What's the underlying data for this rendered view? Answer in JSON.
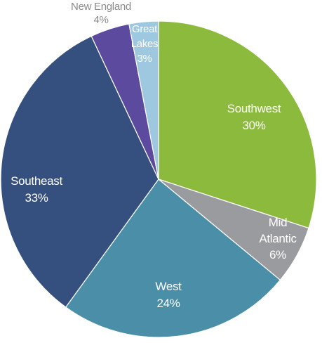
{
  "chart_data": {
    "type": "pie",
    "slices": [
      {
        "name": "Southwest",
        "pct_label": "30%",
        "value": 30,
        "color": "#8cba3c",
        "label_color": "#ffffff"
      },
      {
        "name_lines": [
          "Mid",
          "Atlantic"
        ],
        "name": "Mid Atlantic",
        "pct_label": "6%",
        "value": 6,
        "color": "#9a9b9f",
        "label_color": "#ffffff"
      },
      {
        "name": "West",
        "pct_label": "24%",
        "value": 24,
        "color": "#4a8ea8",
        "label_color": "#ffffff"
      },
      {
        "name": "Southeast",
        "pct_label": "33%",
        "value": 33,
        "color": "#354f7e",
        "label_color": "#ffffff"
      },
      {
        "name": "New England",
        "pct_label": "4%",
        "value": 4,
        "color": "#5b4a9e",
        "label_color": "#8a8a8a"
      },
      {
        "name_lines": [
          "Great",
          "Lakes"
        ],
        "name": "Great Lakes",
        "pct_label": "3%",
        "value": 3,
        "color": "#9ec8df",
        "label_color": "#ffffff"
      }
    ]
  }
}
